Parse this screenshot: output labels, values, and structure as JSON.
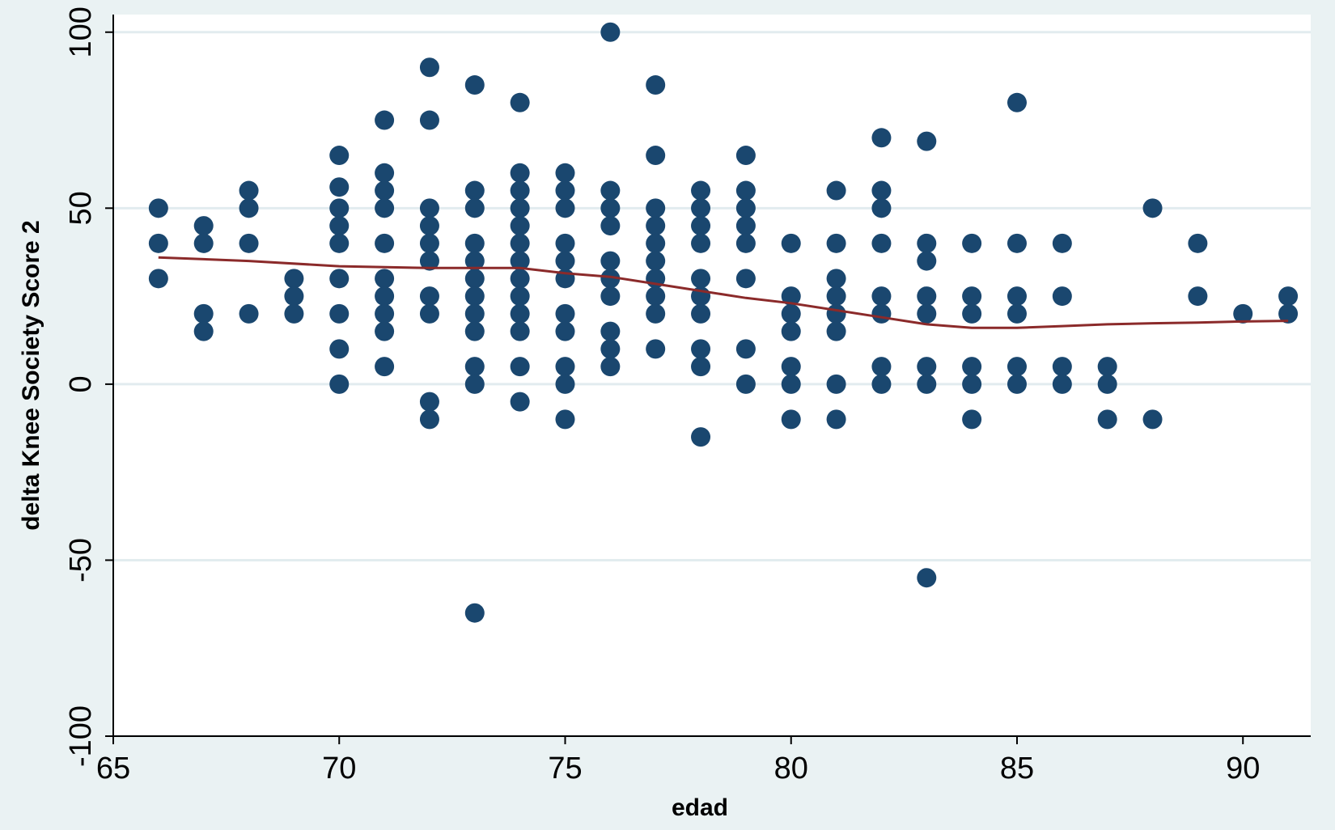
{
  "chart_data": {
    "type": "scatter",
    "title": "",
    "xlabel": "edad",
    "ylabel": "delta Knee Society Score 2",
    "xlim": [
      65,
      91.5
    ],
    "ylim": [
      -100,
      105
    ],
    "xticks": [
      65,
      70,
      75,
      80,
      85,
      90
    ],
    "yticks": [
      -100,
      -50,
      0,
      50,
      100
    ],
    "grid": true,
    "legend": "none",
    "colors": {
      "background": "#eaf2f3",
      "plot_background": "#ffffff",
      "gridline": "#e2ecef",
      "marker": "#1a476f",
      "smoother": "#8b2a2a"
    },
    "series": [
      {
        "kind": "points",
        "points": [
          [
            66,
            50
          ],
          [
            66,
            40
          ],
          [
            66,
            30
          ],
          [
            67,
            45
          ],
          [
            67,
            40
          ],
          [
            67,
            20
          ],
          [
            67,
            15
          ],
          [
            68,
            55
          ],
          [
            68,
            50
          ],
          [
            68,
            40
          ],
          [
            68,
            20
          ],
          [
            69,
            30
          ],
          [
            69,
            25
          ],
          [
            69,
            20
          ],
          [
            70,
            65
          ],
          [
            70,
            56
          ],
          [
            70,
            50
          ],
          [
            70,
            45
          ],
          [
            70,
            40
          ],
          [
            70,
            30
          ],
          [
            70,
            20
          ],
          [
            70,
            10
          ],
          [
            70,
            0
          ],
          [
            71,
            75
          ],
          [
            71,
            60
          ],
          [
            71,
            55
          ],
          [
            71,
            50
          ],
          [
            71,
            40
          ],
          [
            71,
            30
          ],
          [
            71,
            25
          ],
          [
            71,
            20
          ],
          [
            71,
            15
          ],
          [
            71,
            5
          ],
          [
            72,
            90
          ],
          [
            72,
            75
          ],
          [
            72,
            50
          ],
          [
            72,
            45
          ],
          [
            72,
            40
          ],
          [
            72,
            35
          ],
          [
            72,
            25
          ],
          [
            72,
            20
          ],
          [
            72,
            -5
          ],
          [
            72,
            -10
          ],
          [
            73,
            85
          ],
          [
            73,
            55
          ],
          [
            73,
            50
          ],
          [
            73,
            40
          ],
          [
            73,
            35
          ],
          [
            73,
            30
          ],
          [
            73,
            25
          ],
          [
            73,
            20
          ],
          [
            73,
            15
          ],
          [
            73,
            5
          ],
          [
            73,
            0
          ],
          [
            73,
            -65
          ],
          [
            74,
            80
          ],
          [
            74,
            60
          ],
          [
            74,
            55
          ],
          [
            74,
            50
          ],
          [
            74,
            45
          ],
          [
            74,
            40
          ],
          [
            74,
            35
          ],
          [
            74,
            30
          ],
          [
            74,
            25
          ],
          [
            74,
            20
          ],
          [
            74,
            15
          ],
          [
            74,
            5
          ],
          [
            74,
            -5
          ],
          [
            75,
            60
          ],
          [
            75,
            55
          ],
          [
            75,
            50
          ],
          [
            75,
            40
          ],
          [
            75,
            35
          ],
          [
            75,
            30
          ],
          [
            75,
            20
          ],
          [
            75,
            15
          ],
          [
            75,
            5
          ],
          [
            75,
            0
          ],
          [
            75,
            -10
          ],
          [
            76,
            100
          ],
          [
            76,
            55
          ],
          [
            76,
            50
          ],
          [
            76,
            45
          ],
          [
            76,
            35
          ],
          [
            76,
            30
          ],
          [
            76,
            25
          ],
          [
            76,
            15
          ],
          [
            76,
            10
          ],
          [
            76,
            5
          ],
          [
            77,
            85
          ],
          [
            77,
            65
          ],
          [
            77,
            50
          ],
          [
            77,
            45
          ],
          [
            77,
            40
          ],
          [
            77,
            35
          ],
          [
            77,
            30
          ],
          [
            77,
            25
          ],
          [
            77,
            20
          ],
          [
            77,
            10
          ],
          [
            78,
            55
          ],
          [
            78,
            50
          ],
          [
            78,
            45
          ],
          [
            78,
            40
          ],
          [
            78,
            30
          ],
          [
            78,
            25
          ],
          [
            78,
            20
          ],
          [
            78,
            10
          ],
          [
            78,
            5
          ],
          [
            78,
            -15
          ],
          [
            79,
            65
          ],
          [
            79,
            55
          ],
          [
            79,
            50
          ],
          [
            79,
            45
          ],
          [
            79,
            40
          ],
          [
            79,
            30
          ],
          [
            79,
            10
          ],
          [
            79,
            0
          ],
          [
            80,
            40
          ],
          [
            80,
            25
          ],
          [
            80,
            20
          ],
          [
            80,
            15
          ],
          [
            80,
            5
          ],
          [
            80,
            0
          ],
          [
            80,
            -10
          ],
          [
            81,
            55
          ],
          [
            81,
            40
          ],
          [
            81,
            30
          ],
          [
            81,
            25
          ],
          [
            81,
            20
          ],
          [
            81,
            15
          ],
          [
            81,
            0
          ],
          [
            81,
            -10
          ],
          [
            82,
            70
          ],
          [
            82,
            55
          ],
          [
            82,
            50
          ],
          [
            82,
            40
          ],
          [
            82,
            25
          ],
          [
            82,
            20
          ],
          [
            82,
            5
          ],
          [
            82,
            0
          ],
          [
            83,
            69
          ],
          [
            83,
            40
          ],
          [
            83,
            35
          ],
          [
            83,
            25
          ],
          [
            83,
            20
          ],
          [
            83,
            5
          ],
          [
            83,
            0
          ],
          [
            83,
            -55
          ],
          [
            84,
            40
          ],
          [
            84,
            25
          ],
          [
            84,
            20
          ],
          [
            84,
            5
          ],
          [
            84,
            0
          ],
          [
            84,
            -10
          ],
          [
            85,
            80
          ],
          [
            85,
            40
          ],
          [
            85,
            25
          ],
          [
            85,
            20
          ],
          [
            85,
            5
          ],
          [
            85,
            0
          ],
          [
            86,
            40
          ],
          [
            86,
            25
          ],
          [
            86,
            5
          ],
          [
            86,
            0
          ],
          [
            87,
            5
          ],
          [
            87,
            0
          ],
          [
            87,
            -10
          ],
          [
            88,
            50
          ],
          [
            88,
            -10
          ],
          [
            89,
            40
          ],
          [
            89,
            25
          ],
          [
            90,
            20
          ],
          [
            91,
            25
          ],
          [
            91,
            20
          ]
        ]
      },
      {
        "kind": "smoother",
        "x": [
          66,
          68,
          70,
          72,
          74,
          75,
          76,
          77,
          78,
          79,
          80,
          81,
          82,
          83,
          84,
          85,
          86,
          87,
          88,
          89,
          90,
          91
        ],
        "y": [
          36,
          35,
          33.5,
          33,
          33,
          31.5,
          30.5,
          28.5,
          26.5,
          24.5,
          23,
          21,
          19,
          17,
          16,
          16,
          16.5,
          17,
          17.3,
          17.5,
          17.8,
          18
        ]
      }
    ]
  }
}
